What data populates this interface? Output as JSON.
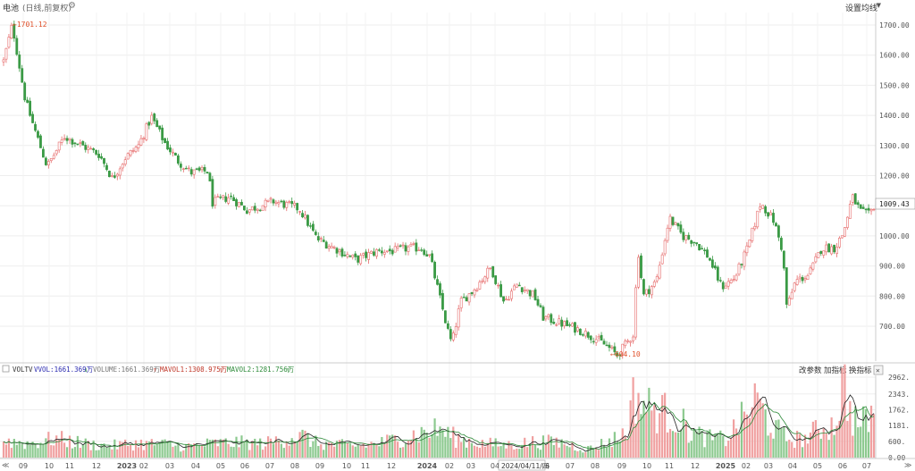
{
  "header": {
    "title": "电池",
    "subtitle": "(日线,前复权)",
    "gear_icon": "gear-icon",
    "ma_settings_label": "设置均线",
    "ma_arrow": "▼"
  },
  "colors": {
    "up": "#e66a6a",
    "down": "#3a9a45",
    "grid": "#eeeeee",
    "vol_label": "#2b2bb0",
    "mavol1": "#c0392b",
    "mavol2": "#2e8b3a",
    "ma_line1": "#222222",
    "ma_line2": "#2e8b3a",
    "marker": "#e0502a"
  },
  "volume_panel": {
    "legend": {
      "name": "VOLTV",
      "vvol": "VVOL:1661.369万",
      "vvol_arrow": "↓",
      "volume": "VOLUME:1661.369万",
      "volume_arrow": "↑",
      "mavol1": "MAVOL1:1308.975万",
      "mavol1_arrow": "↑",
      "mavol2": "MAVOL2:1281.756万",
      "mavol2_arrow": "↑"
    },
    "buttons": {
      "change_params": "改参数",
      "add_indicator": "加指标",
      "switch_indicator": "换指标"
    },
    "close_icon": "✕",
    "ytick_labels": [
      "2962.",
      "2343.",
      "1762.",
      "1181.",
      "600.",
      "0.00"
    ]
  },
  "nav": {
    "left": "≪",
    "right": "≫"
  },
  "chart_data": {
    "type": "candlestick",
    "title": "电池",
    "subtitle": "(日线,前复权)",
    "y_axis": {
      "ticks": [
        1700,
        1600,
        1500,
        1400,
        1300,
        1200,
        1100,
        1000,
        900,
        800,
        700
      ],
      "tick_labels": [
        "1700.00",
        "1600.00",
        "1500.00",
        "1400.00",
        "1300.00",
        "1200.00",
        "1100.00",
        "1000.00",
        "900.00",
        "800.00",
        "700.00"
      ]
    },
    "x_axis": {
      "tick_labels": [
        "09",
        "10",
        "11",
        "12",
        "2023",
        "02",
        "03",
        "04",
        "05",
        "06",
        "07",
        "08",
        "09",
        "10",
        "11",
        "12",
        "2024",
        "02",
        "03",
        "04",
        "06",
        "07",
        "08",
        "09",
        "10",
        "11",
        "12",
        "2025",
        "02",
        "03",
        "04",
        "05",
        "06",
        "07"
      ],
      "hover_label": "2024/04/11/四"
    },
    "last_price_label": "1009.43",
    "max_marker": {
      "label": "←1701.12",
      "value": 1701.12
    },
    "min_marker": {
      "label": "←604.10",
      "value": 604.1
    },
    "price_path": [
      [
        0,
        1580
      ],
      [
        0.01,
        1701.12
      ],
      [
        0.025,
        1450
      ],
      [
        0.035,
        1360
      ],
      [
        0.05,
        1230
      ],
      [
        0.07,
        1330
      ],
      [
        0.09,
        1300
      ],
      [
        0.11,
        1270
      ],
      [
        0.125,
        1190
      ],
      [
        0.14,
        1260
      ],
      [
        0.155,
        1300
      ],
      [
        0.17,
        1395
      ],
      [
        0.185,
        1310
      ],
      [
        0.2,
        1250
      ],
      [
        0.215,
        1210
      ],
      [
        0.235,
        1215
      ],
      [
        0.24,
        1110
      ],
      [
        0.26,
        1130
      ],
      [
        0.28,
        1085
      ],
      [
        0.31,
        1115
      ],
      [
        0.34,
        1090
      ],
      [
        0.36,
        990
      ],
      [
        0.38,
        960
      ],
      [
        0.405,
        920
      ],
      [
        0.43,
        950
      ],
      [
        0.45,
        950
      ],
      [
        0.465,
        960
      ],
      [
        0.48,
        960
      ],
      [
        0.49,
        930
      ],
      [
        0.51,
        690
      ],
      [
        0.515,
        640
      ],
      [
        0.525,
        780
      ],
      [
        0.54,
        820
      ],
      [
        0.56,
        895
      ],
      [
        0.575,
        780
      ],
      [
        0.59,
        840
      ],
      [
        0.61,
        800
      ],
      [
        0.62,
        730
      ],
      [
        0.64,
        710
      ],
      [
        0.66,
        690
      ],
      [
        0.68,
        660
      ],
      [
        0.695,
        630
      ],
      [
        0.705,
        604.1
      ],
      [
        0.715,
        640
      ],
      [
        0.725,
        680
      ],
      [
        0.728,
        980
      ],
      [
        0.735,
        800
      ],
      [
        0.75,
        850
      ],
      [
        0.765,
        1060
      ],
      [
        0.78,
        1000
      ],
      [
        0.795,
        980
      ],
      [
        0.81,
        930
      ],
      [
        0.825,
        830
      ],
      [
        0.84,
        860
      ],
      [
        0.855,
        960
      ],
      [
        0.87,
        1110
      ],
      [
        0.885,
        1050
      ],
      [
        0.895,
        950
      ],
      [
        0.9,
        760
      ],
      [
        0.91,
        850
      ],
      [
        0.925,
        870
      ],
      [
        0.94,
        960
      ],
      [
        0.955,
        960
      ],
      [
        0.965,
        1010
      ],
      [
        0.975,
        1130
      ],
      [
        0.985,
        1080
      ],
      [
        0.995,
        1070
      ],
      [
        1.0,
        1100
      ]
    ],
    "volume_path": [
      [
        0,
        620
      ],
      [
        0.03,
        520
      ],
      [
        0.06,
        700
      ],
      [
        0.09,
        520
      ],
      [
        0.12,
        420
      ],
      [
        0.15,
        520
      ],
      [
        0.18,
        500
      ],
      [
        0.21,
        410
      ],
      [
        0.24,
        520
      ],
      [
        0.27,
        550
      ],
      [
        0.3,
        510
      ],
      [
        0.33,
        760
      ],
      [
        0.345,
        780
      ],
      [
        0.36,
        520
      ],
      [
        0.4,
        430
      ],
      [
        0.43,
        520
      ],
      [
        0.47,
        830
      ],
      [
        0.5,
        1050
      ],
      [
        0.52,
        710
      ],
      [
        0.55,
        520
      ],
      [
        0.58,
        460
      ],
      [
        0.61,
        580
      ],
      [
        0.64,
        560
      ],
      [
        0.67,
        300
      ],
      [
        0.7,
        650
      ],
      [
        0.715,
        920
      ],
      [
        0.725,
        2350
      ],
      [
        0.74,
        1850
      ],
      [
        0.76,
        1650
      ],
      [
        0.775,
        1440
      ],
      [
        0.79,
        920
      ],
      [
        0.81,
        700
      ],
      [
        0.83,
        680
      ],
      [
        0.85,
        1450
      ],
      [
        0.865,
        2150
      ],
      [
        0.88,
        1240
      ],
      [
        0.9,
        700
      ],
      [
        0.92,
        680
      ],
      [
        0.94,
        1120
      ],
      [
        0.955,
        1200
      ],
      [
        0.965,
        2800
      ],
      [
        0.975,
        1500
      ],
      [
        0.985,
        1200
      ],
      [
        1.0,
        1660
      ]
    ]
  }
}
